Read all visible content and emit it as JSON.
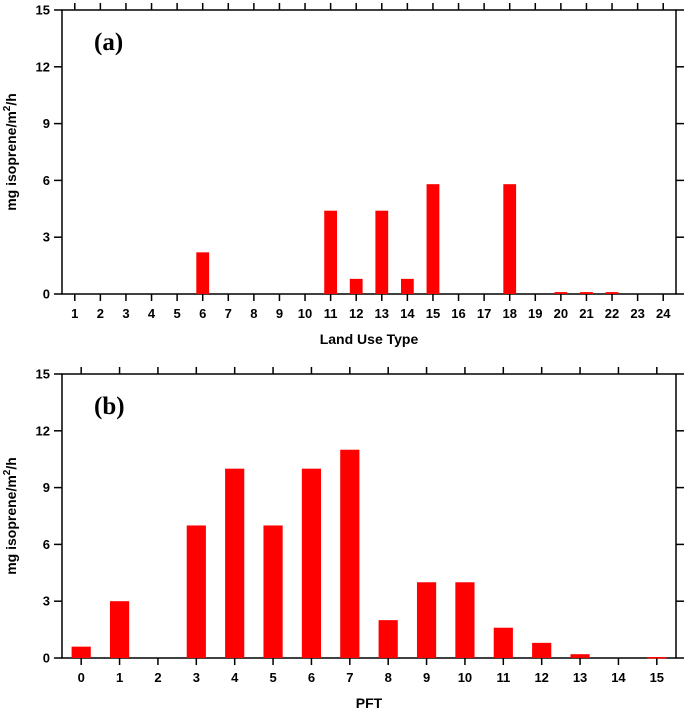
{
  "figure": {
    "background": "#ffffff",
    "frame_color": "#000000",
    "bar_color": "#ff0000"
  },
  "chart_data": [
    {
      "type": "bar",
      "panel_label": "(a)",
      "xlabel": "Land Use Type",
      "ylabel": "mg isoprene/m2/h",
      "ylabel_parts": {
        "pre": "mg isoprene/m",
        "sup": "2",
        "post": "/h"
      },
      "categories": [
        "1",
        "2",
        "3",
        "4",
        "5",
        "6",
        "7",
        "8",
        "9",
        "10",
        "11",
        "12",
        "13",
        "14",
        "15",
        "16",
        "17",
        "18",
        "19",
        "20",
        "21",
        "22",
        "23",
        "24"
      ],
      "values": [
        0,
        0,
        0,
        0,
        0,
        2.2,
        0,
        0,
        0,
        0,
        4.4,
        0.8,
        4.4,
        0.8,
        5.8,
        0,
        0,
        5.8,
        0,
        0.1,
        0.1,
        0.1,
        0,
        0
      ],
      "ylim": [
        0,
        15
      ],
      "yticks": [
        0,
        3,
        6,
        9,
        12,
        15
      ],
      "bar_color": "#ff0000",
      "bar_frac": 0.5,
      "grid": false,
      "legend": "none"
    },
    {
      "type": "bar",
      "panel_label": "(b)",
      "xlabel": "PFT",
      "ylabel": "mg isoprene/m2/h",
      "ylabel_parts": {
        "pre": "mg isoprene/m",
        "sup": "2",
        "post": "/h"
      },
      "categories": [
        "0",
        "1",
        "2",
        "3",
        "4",
        "5",
        "6",
        "7",
        "8",
        "9",
        "10",
        "11",
        "12",
        "13",
        "14",
        "15"
      ],
      "values": [
        0.6,
        3.0,
        0,
        7.0,
        10.0,
        7.0,
        10.0,
        11.0,
        2.0,
        4.0,
        4.0,
        1.6,
        0.8,
        0.2,
        0,
        0.05
      ],
      "ylim": [
        0,
        15
      ],
      "yticks": [
        0,
        3,
        6,
        9,
        12,
        15
      ],
      "bar_color": "#ff0000",
      "bar_frac": 0.5,
      "grid": false,
      "legend": "none"
    }
  ]
}
